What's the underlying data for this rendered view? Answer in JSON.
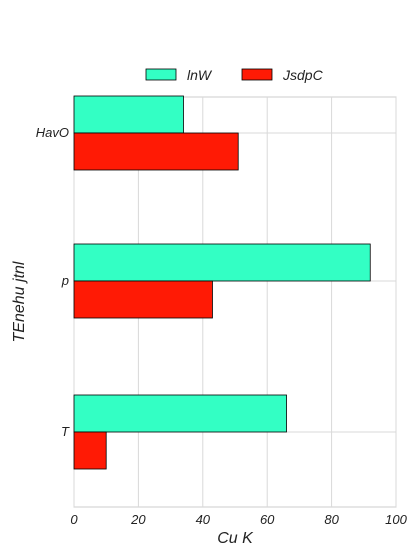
{
  "chart_data": {
    "type": "bar",
    "orientation": "horizontal",
    "categories": [
      "HavO",
      "p",
      "T"
    ],
    "series": [
      {
        "name": "lnW",
        "values": [
          34,
          92,
          66
        ],
        "color": "#33ffc4"
      },
      {
        "name": "JsdpC",
        "values": [
          51,
          43,
          10
        ],
        "color": "#ff1a05"
      }
    ],
    "xlabel": "Cu  K",
    "ylabel": "TEnehu jtnl",
    "xlim": [
      0,
      100
    ],
    "xticks": [
      0,
      20,
      40,
      60,
      80,
      100
    ],
    "grid": true,
    "legend_position": "top"
  }
}
